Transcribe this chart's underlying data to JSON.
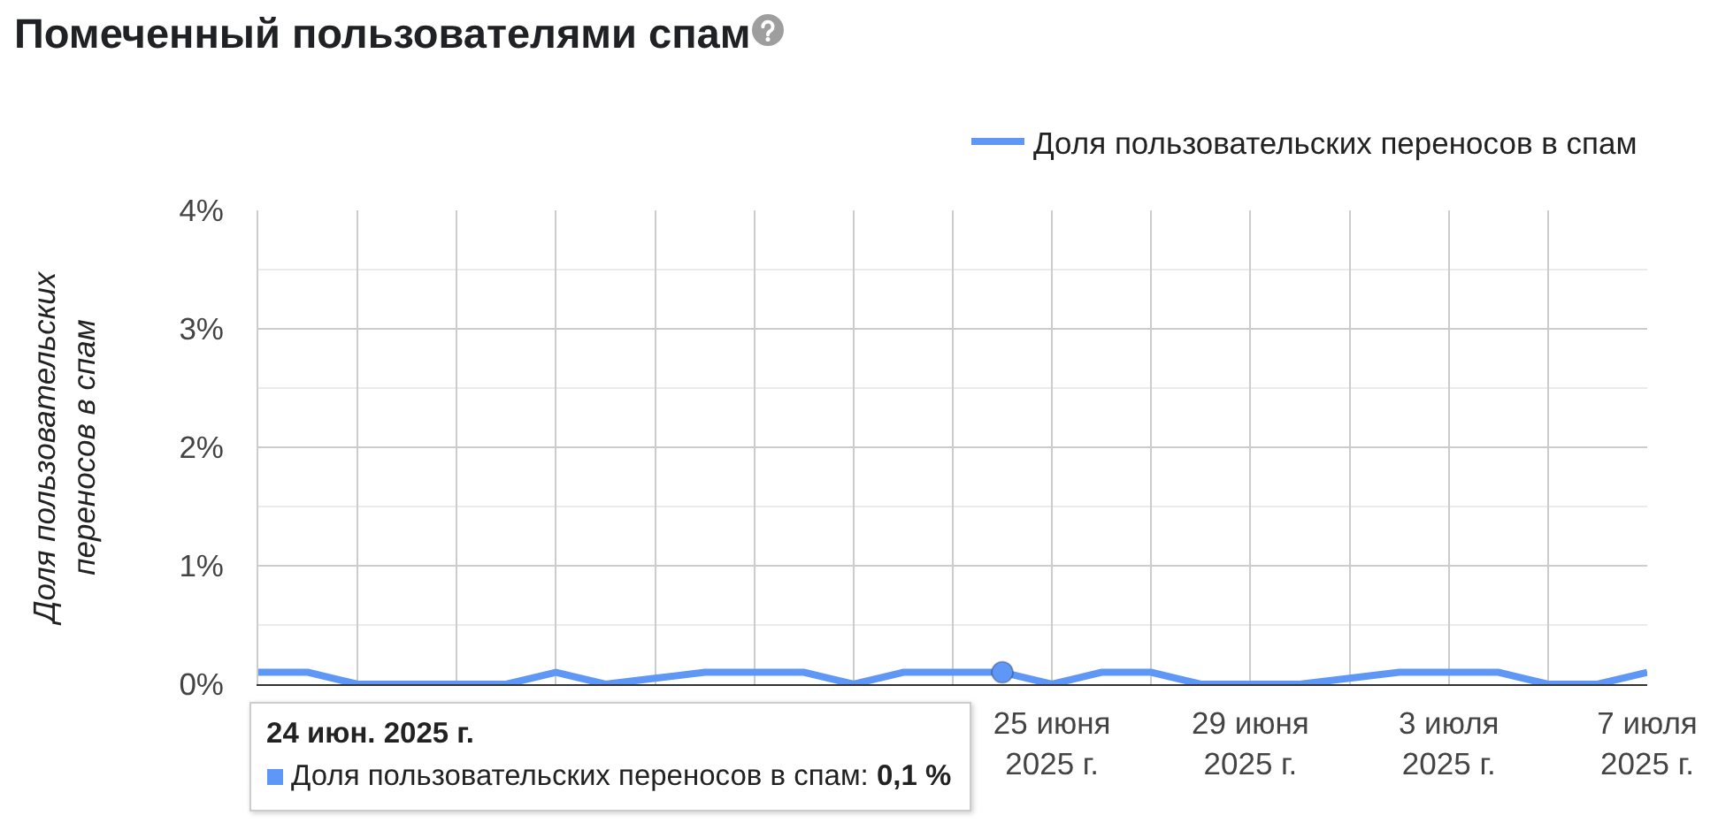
{
  "chart_data": {
    "type": "line",
    "title": "Помеченный пользователями спам",
    "ylabel": "Доля пользовательских\nпереносов в спам",
    "x": [
      "2025-06-09",
      "2025-06-10",
      "2025-06-11",
      "2025-06-12",
      "2025-06-13",
      "2025-06-14",
      "2025-06-15",
      "2025-06-16",
      "2025-06-17",
      "2025-06-18",
      "2025-06-19",
      "2025-06-20",
      "2025-06-21",
      "2025-06-22",
      "2025-06-23",
      "2025-06-24",
      "2025-06-25",
      "2025-06-26",
      "2025-06-27",
      "2025-06-28",
      "2025-06-29",
      "2025-06-30",
      "2025-07-01",
      "2025-07-02",
      "2025-07-03",
      "2025-07-04",
      "2025-07-05",
      "2025-07-06",
      "2025-07-07"
    ],
    "series": [
      {
        "name": "Доля пользовательских переносов в спам",
        "color": "#5e97f6",
        "values": [
          0.1,
          0.1,
          0,
          0,
          0,
          0,
          0.1,
          0,
          0.05,
          0.1,
          0.1,
          0.1,
          0,
          0.1,
          0.1,
          0.1,
          0,
          0.1,
          0.1,
          0,
          0,
          0,
          0.05,
          0.1,
          0.1,
          0.1,
          0,
          0,
          0.1
        ]
      },
      {
        "type": "scatter",
        "color": "#5e97f6",
        "marker": "circle",
        "x": [
          "2025-06-24"
        ],
        "values": [
          0.1
        ]
      }
    ],
    "xlim": [
      "2025-06-09",
      "2025-07-07"
    ],
    "xticks": [
      {
        "value": "2025-06-09",
        "label": null
      },
      {
        "value": "2025-06-11",
        "label": null
      },
      {
        "value": "2025-06-13",
        "label": null
      },
      {
        "value": "2025-06-15",
        "label": null
      },
      {
        "value": "2025-06-17",
        "label": null
      },
      {
        "value": "2025-06-19",
        "label": null
      },
      {
        "value": "2025-06-21",
        "label": null
      },
      {
        "value": "2025-06-23",
        "label": null
      },
      {
        "value": "2025-06-25",
        "label": "25 июня\n2025 г."
      },
      {
        "value": "2025-06-27",
        "label": null
      },
      {
        "value": "2025-06-29",
        "label": "29 июня\n2025 г."
      },
      {
        "value": "2025-07-01",
        "label": null
      },
      {
        "value": "2025-07-03",
        "label": "3 июля\n2025 г."
      },
      {
        "value": "2025-07-05",
        "label": null
      },
      {
        "value": "2025-07-07",
        "label": "7 июля\n2025 г."
      }
    ],
    "ylim": [
      0,
      4
    ],
    "yticks": [
      {
        "value": 0,
        "label": "0%"
      },
      {
        "value": 0.5,
        "label": null
      },
      {
        "value": 1,
        "label": "1%"
      },
      {
        "value": 1.5,
        "label": null
      },
      {
        "value": 2,
        "label": "2%"
      },
      {
        "value": 2.5,
        "label": null
      },
      {
        "value": 3,
        "label": "3%"
      },
      {
        "value": 3.5,
        "label": null
      },
      {
        "value": 4,
        "label": "4%"
      }
    ],
    "grid": true,
    "legend": "top right",
    "annotations": [
      "24 июн. 2025 г.",
      "Доля пользовательских переносов в спам: 0,1 %"
    ]
  }
}
